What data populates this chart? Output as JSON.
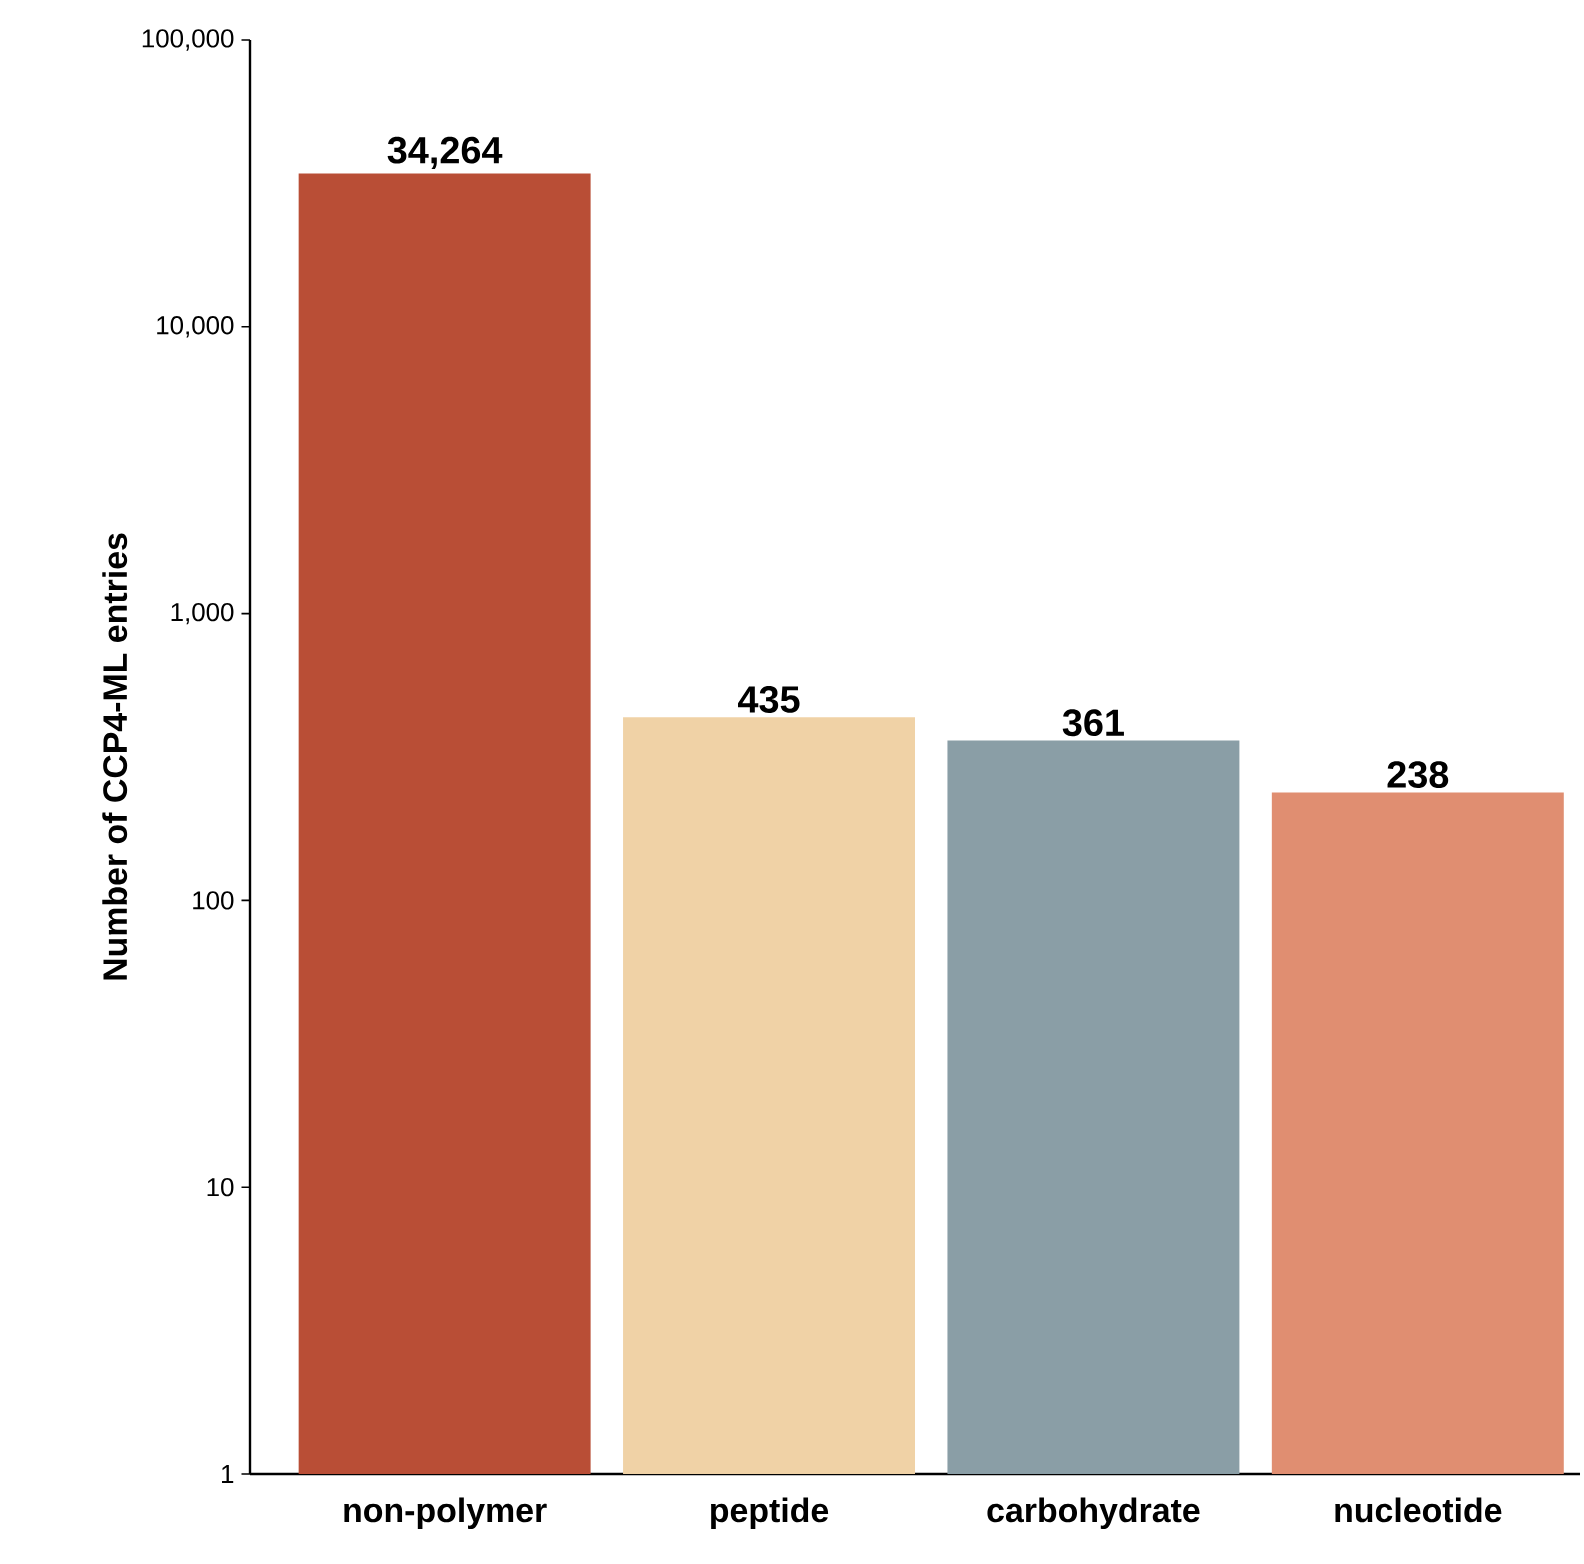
{
  "chart_data": {
    "type": "bar",
    "ylabel": "Number of CCP4-ML entries",
    "categories": [
      "non-polymer",
      "peptide",
      "carbohydrate",
      "nucleotide"
    ],
    "values": [
      34264,
      435,
      361,
      238
    ],
    "value_labels": [
      "34,264",
      "435",
      "361",
      "238"
    ],
    "colors": [
      "#b94e36",
      "#f0d2a6",
      "#8a9ea6",
      "#e08e71"
    ],
    "log": "y",
    "ylim": [
      1,
      100000
    ],
    "yticks": [
      1,
      10,
      100,
      {
        "value": 1000,
        "label": "1,000"
      },
      {
        "value": 10000,
        "label": "10,000"
      },
      {
        "value": 100000,
        "label": "100,000"
      }
    ],
    "grid": false
  }
}
